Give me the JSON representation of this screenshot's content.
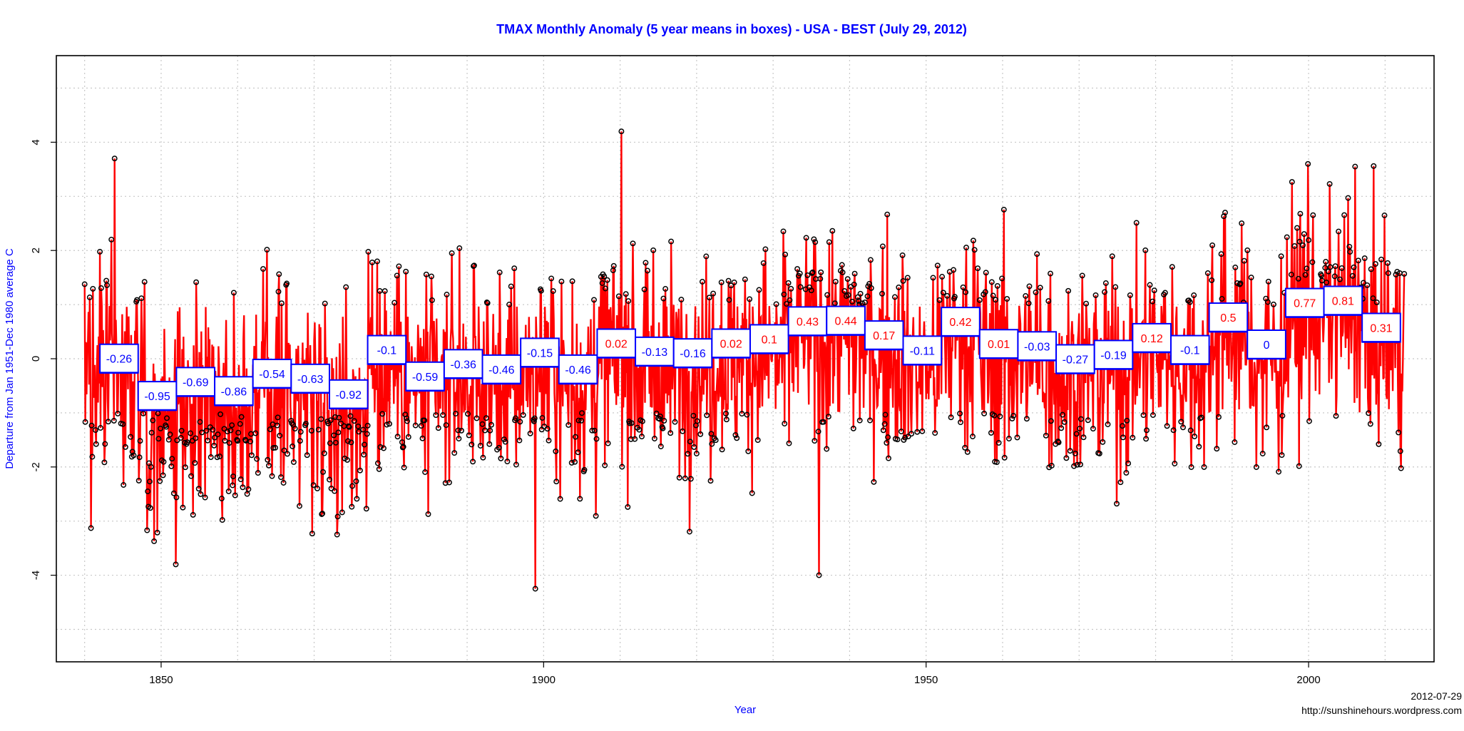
{
  "chart_data": {
    "type": "line",
    "title": "TMAX Monthly Anomaly (5 year means in boxes) - USA - BEST (July 29, 2012)",
    "xlabel": "Year",
    "ylabel": "Departure from Jan 1951-Dec 1980 average C",
    "xlim": [
      1836.3,
      2016.4
    ],
    "ylim": [
      -5.6,
      5.6
    ],
    "x_ticks": [
      1850,
      1900,
      1950,
      2000
    ],
    "y_ticks": [
      -4,
      -2,
      0,
      2,
      4
    ],
    "grid": true,
    "colors": {
      "line": "#ff0000",
      "points": "#000000",
      "box": "#0000ff",
      "title": "#0000ff",
      "positive_label": "#ff0000",
      "negative_label": "#0000ff"
    },
    "monthly_series": {
      "name": "",
      "x_start": 1840.0,
      "x_end": 2012.5,
      "notable_points": [
        {
          "x": 1843.9,
          "y": 3.7
        },
        {
          "x": 1851.9,
          "y": -3.8
        },
        {
          "x": 1898.9,
          "y": -4.25
        },
        {
          "x": 1910.2,
          "y": 4.2
        },
        {
          "x": 1936.0,
          "y": -4.0
        },
        {
          "x": 1999.9,
          "y": 3.6
        },
        {
          "x": 2006.1,
          "y": 3.55
        }
      ]
    },
    "five_year_means": [
      {
        "start": 1842,
        "end": 1847,
        "value": -0.26,
        "label": "-0.26"
      },
      {
        "start": 1847,
        "end": 1852,
        "value": -0.95,
        "label": "-0.95"
      },
      {
        "start": 1852,
        "end": 1857,
        "value": -0.69,
        "label": "-0.69"
      },
      {
        "start": 1857,
        "end": 1862,
        "value": -0.86,
        "label": "-0.86"
      },
      {
        "start": 1862,
        "end": 1867,
        "value": -0.54,
        "label": "-0.54"
      },
      {
        "start": 1867,
        "end": 1872,
        "value": -0.63,
        "label": "-0.63"
      },
      {
        "start": 1872,
        "end": 1877,
        "value": -0.92,
        "label": "-0.92"
      },
      {
        "start": 1877,
        "end": 1882,
        "value": -0.1,
        "label": "-0.1"
      },
      {
        "start": 1882,
        "end": 1887,
        "value": -0.59,
        "label": "-0.59"
      },
      {
        "start": 1887,
        "end": 1892,
        "value": -0.36,
        "label": "-0.36"
      },
      {
        "start": 1892,
        "end": 1897,
        "value": -0.46,
        "label": "-0.46"
      },
      {
        "start": 1897,
        "end": 1902,
        "value": -0.15,
        "label": "-0.15"
      },
      {
        "start": 1902,
        "end": 1907,
        "value": -0.46,
        "label": "-0.46"
      },
      {
        "start": 1907,
        "end": 1912,
        "value": 0.02,
        "label": "0.02"
      },
      {
        "start": 1912,
        "end": 1917,
        "value": -0.13,
        "label": "-0.13"
      },
      {
        "start": 1917,
        "end": 1922,
        "value": -0.16,
        "label": "-0.16"
      },
      {
        "start": 1922,
        "end": 1927,
        "value": 0.02,
        "label": "0.02"
      },
      {
        "start": 1927,
        "end": 1932,
        "value": 0.1,
        "label": "0.1"
      },
      {
        "start": 1932,
        "end": 1937,
        "value": 0.43,
        "label": "0.43"
      },
      {
        "start": 1937,
        "end": 1942,
        "value": 0.44,
        "label": "0.44"
      },
      {
        "start": 1942,
        "end": 1947,
        "value": 0.17,
        "label": "0.17"
      },
      {
        "start": 1947,
        "end": 1952,
        "value": -0.11,
        "label": "-0.11"
      },
      {
        "start": 1952,
        "end": 1957,
        "value": 0.42,
        "label": "0.42"
      },
      {
        "start": 1957,
        "end": 1962,
        "value": 0.01,
        "label": "0.01"
      },
      {
        "start": 1962,
        "end": 1967,
        "value": -0.03,
        "label": "-0.03"
      },
      {
        "start": 1967,
        "end": 1972,
        "value": -0.27,
        "label": "-0.27"
      },
      {
        "start": 1972,
        "end": 1977,
        "value": -0.19,
        "label": "-0.19"
      },
      {
        "start": 1977,
        "end": 1982,
        "value": 0.12,
        "label": "0.12"
      },
      {
        "start": 1982,
        "end": 1987,
        "value": -0.1,
        "label": "-0.1"
      },
      {
        "start": 1987,
        "end": 1992,
        "value": 0.5,
        "label": "0.5"
      },
      {
        "start": 1992,
        "end": 1997,
        "value": 0.0,
        "label": "0"
      },
      {
        "start": 1997,
        "end": 2002,
        "value": 0.77,
        "label": "0.77"
      },
      {
        "start": 2002,
        "end": 2007,
        "value": 0.81,
        "label": "0.81"
      },
      {
        "start": 2007,
        "end": 2012,
        "value": 0.31,
        "label": "0.31"
      }
    ]
  },
  "footer": {
    "date": "2012-07-29",
    "url": "http://sunshinehours.wordpress.com"
  }
}
